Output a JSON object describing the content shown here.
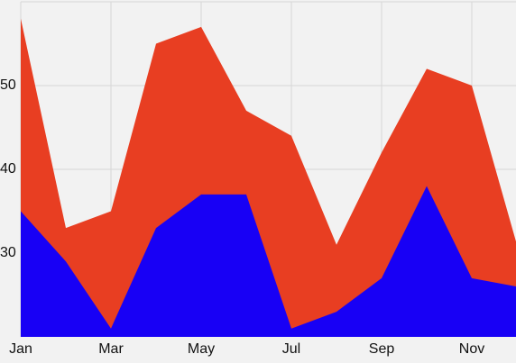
{
  "chart_data": {
    "type": "area",
    "categories": [
      "Jan",
      null,
      "Mar",
      null,
      "May",
      null,
      "Jul",
      null,
      "Sep",
      null,
      "Nov",
      null
    ],
    "series": [
      {
        "color": "#e83e22",
        "values": [
          58,
          33,
          35,
          55,
          57,
          47,
          44,
          31,
          42,
          52,
          50,
          31
        ]
      },
      {
        "color": "#1800f5",
        "values": [
          35,
          29,
          21,
          33,
          37,
          37,
          21,
          23,
          27,
          38,
          27,
          26
        ]
      }
    ],
    "ylim": [
      20,
      60
    ],
    "yticks": [
      30,
      40,
      50
    ],
    "grid": true
  }
}
